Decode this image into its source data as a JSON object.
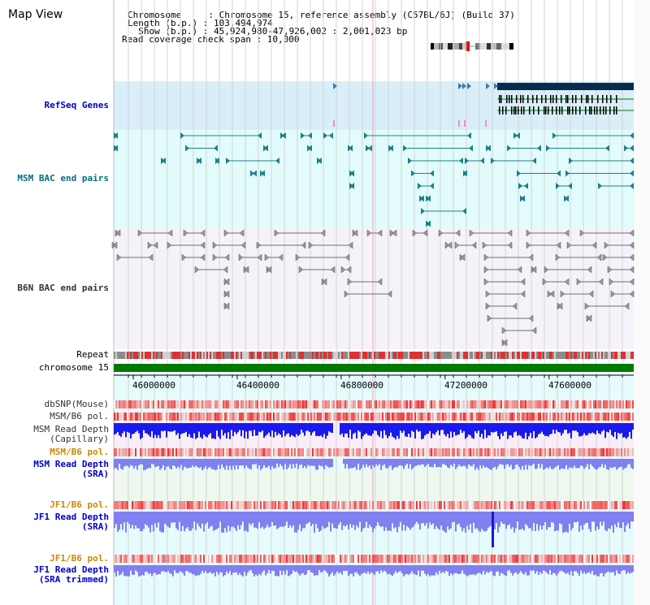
{
  "title": "Map View",
  "header": {
    "lines": [
      "Chromosome     : Chromosome 15, reference assembly (C57BL/6J) (Build 37)",
      "Length (b.p.) : 103,494,974",
      "  Show (b.p.) : 45,924,980-47,926,002 : 2,001,023 bp",
      "Read coverage check span : 10,000"
    ]
  },
  "tracks": [
    {
      "label": "RefSeq Genes",
      "color": "#0000cc"
    },
    {
      "label": "MSM BAC end pairs",
      "color": "#006f80"
    },
    {
      "label": "B6N BAC end pairs",
      "color": "#333333"
    },
    {
      "label": "Repeat",
      "color": "#000000"
    },
    {
      "label": "chromosome 15",
      "color": "#000000"
    },
    {
      "label": "dbSNP(Mouse)",
      "color": "#333333"
    },
    {
      "label": "MSM/B6 pol.",
      "color": "#333333"
    },
    {
      "label": "MSM Read Depth\n(Capillary)",
      "color": "#333333"
    },
    {
      "label": "MSM/B6 pol.",
      "color": "#cc8800"
    },
    {
      "label": "MSM Read Depth\n(SRA)",
      "color": "#0000cc"
    },
    {
      "label": "JF1/B6 pol.",
      "color": "#cc8800"
    },
    {
      "label": "JF1 Read Depth\n(SRA)",
      "color": "#0000cc"
    },
    {
      "label": "JF1/B6 pol.",
      "color": "#cc8800"
    },
    {
      "label": "JF1 Read Depth\n(SRA trimmed)",
      "color": "#0000cc"
    }
  ],
  "axis": {
    "start_bp": 45924980,
    "end_bp": 47926002,
    "tick_labels": [
      "46000000",
      "46400000",
      "46800000",
      "47200000",
      "47600000"
    ],
    "tick_values": [
      46000000,
      46400000,
      46800000,
      47200000,
      47600000
    ]
  },
  "colors": {
    "refseq_bg": "#d9eef8",
    "msm_bac_bg": "#e2fbfb",
    "b6n_bac_bg": "#f6f2fa",
    "chromosome": "#007a00",
    "gene_dark": "#0a2a50",
    "msm_bac": "#1f7f8a",
    "b6n_bac": "#6e6e6e",
    "depth_blue": "#1a1aee",
    "depth_light": "#8080f0",
    "snp_red": "#ee3333"
  }
}
